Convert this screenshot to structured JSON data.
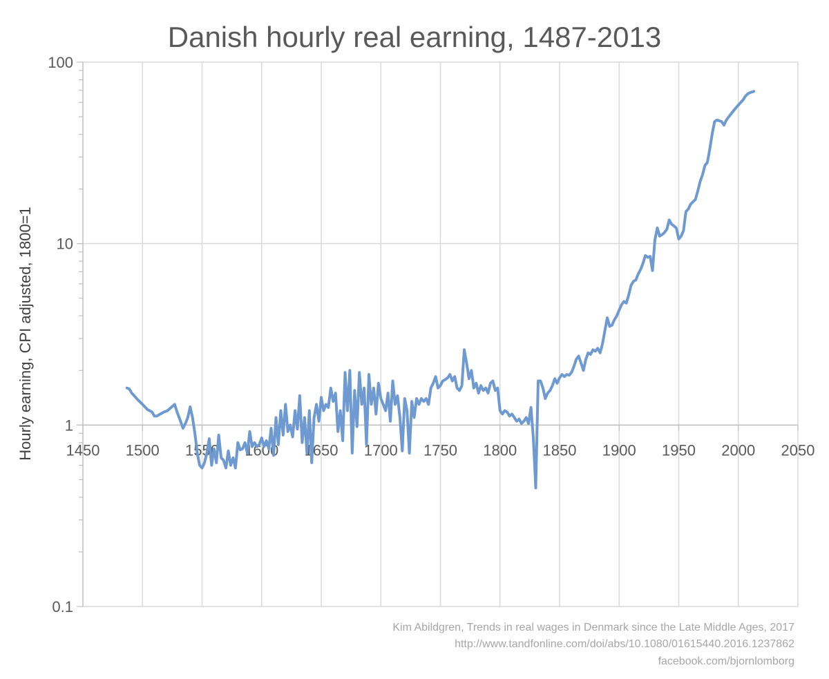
{
  "chart_data": {
    "type": "line",
    "title": "Danish hourly real earning, 1487-2013",
    "xlabel": "",
    "ylabel": "Hourly earning, CPI adjusted, 1800=1",
    "x_range": [
      1450,
      2050
    ],
    "x_ticks": [
      1450,
      1500,
      1550,
      1600,
      1650,
      1700,
      1750,
      1800,
      1850,
      1900,
      1950,
      2000,
      2050
    ],
    "y_scale": "log",
    "y_range": [
      0.1,
      100
    ],
    "y_ticks": [
      0.1,
      1,
      10,
      100
    ],
    "y_tick_labels": [
      "0.1",
      "1",
      "10",
      "100"
    ],
    "grid": {
      "x": true,
      "y": true
    },
    "color": "#6f99d1",
    "series": [
      {
        "x": [
          1487,
          1489,
          1491,
          1493,
          1496,
          1500,
          1504,
          1508,
          1510,
          1512,
          1515,
          1518,
          1521,
          1524,
          1527,
          1529,
          1532,
          1534,
          1536,
          1538,
          1540,
          1542,
          1544,
          1546,
          1548,
          1550,
          1552,
          1554,
          1556,
          1558,
          1560,
          1562,
          1564,
          1566,
          1568,
          1570,
          1572,
          1574,
          1576,
          1578,
          1580,
          1582,
          1584,
          1586,
          1588,
          1590,
          1592,
          1594,
          1596,
          1598,
          1600,
          1602,
          1604,
          1606,
          1608,
          1610,
          1612,
          1614,
          1616,
          1618,
          1620,
          1622,
          1624,
          1626,
          1628,
          1630,
          1632,
          1634,
          1636,
          1638,
          1640,
          1642,
          1644,
          1646,
          1648,
          1650,
          1652,
          1654,
          1656,
          1658,
          1660,
          1662,
          1664,
          1666,
          1668,
          1670,
          1672,
          1674,
          1676,
          1678,
          1680,
          1682,
          1684,
          1686,
          1688,
          1690,
          1692,
          1694,
          1696,
          1698,
          1700,
          1702,
          1704,
          1706,
          1708,
          1710,
          1712,
          1714,
          1716,
          1718,
          1720,
          1722,
          1724,
          1726,
          1728,
          1730,
          1732,
          1734,
          1736,
          1738,
          1740,
          1742,
          1744,
          1746,
          1748,
          1750,
          1752,
          1754,
          1756,
          1758,
          1760,
          1762,
          1764,
          1766,
          1768,
          1770,
          1772,
          1774,
          1776,
          1778,
          1780,
          1782,
          1784,
          1786,
          1788,
          1790,
          1792,
          1794,
          1796,
          1798,
          1800,
          1802,
          1804,
          1806,
          1808,
          1810,
          1812,
          1814,
          1816,
          1818,
          1820,
          1822,
          1824,
          1826,
          1828,
          1830,
          1832,
          1834,
          1836,
          1838,
          1840,
          1842,
          1844,
          1846,
          1848,
          1850,
          1852,
          1854,
          1856,
          1858,
          1860,
          1862,
          1864,
          1866,
          1868,
          1870,
          1872,
          1874,
          1876,
          1878,
          1880,
          1882,
          1884,
          1886,
          1888,
          1890,
          1892,
          1894,
          1896,
          1898,
          1900,
          1902,
          1904,
          1906,
          1908,
          1910,
          1912,
          1914,
          1916,
          1918,
          1920,
          1922,
          1924,
          1926,
          1928,
          1930,
          1932,
          1934,
          1936,
          1938,
          1940,
          1942,
          1944,
          1946,
          1948,
          1950,
          1952,
          1954,
          1956,
          1958,
          1960,
          1962,
          1964,
          1966,
          1968,
          1970,
          1972,
          1974,
          1976,
          1978,
          1980,
          1982,
          1984,
          1986,
          1988,
          1990,
          1992,
          1994,
          1996,
          1998,
          2000,
          2002,
          2004,
          2006,
          2008,
          2010,
          2013
        ],
        "y": [
          1.6,
          1.58,
          1.5,
          1.45,
          1.38,
          1.3,
          1.22,
          1.18,
          1.12,
          1.12,
          1.15,
          1.18,
          1.2,
          1.25,
          1.3,
          1.18,
          1.05,
          0.96,
          1.02,
          1.1,
          1.26,
          1.1,
          0.9,
          0.7,
          0.6,
          0.58,
          0.62,
          0.7,
          0.84,
          0.6,
          0.74,
          0.62,
          0.88,
          0.66,
          0.64,
          0.58,
          0.72,
          0.6,
          0.66,
          0.58,
          0.8,
          0.73,
          0.74,
          0.8,
          0.7,
          0.92,
          0.76,
          0.8,
          0.76,
          0.78,
          0.85,
          0.76,
          0.82,
          0.74,
          0.96,
          0.68,
          1.1,
          0.78,
          1.2,
          0.88,
          1.3,
          0.92,
          1.0,
          0.86,
          1.2,
          0.95,
          1.45,
          0.8,
          1.1,
          0.7,
          1.2,
          0.62,
          1.1,
          1.3,
          1.05,
          1.42,
          1.2,
          1.3,
          1.25,
          1.6,
          1.35,
          1.5,
          0.92,
          1.2,
          0.82,
          1.95,
          1.2,
          2.0,
          0.7,
          1.55,
          0.98,
          1.95,
          1.3,
          1.6,
          0.78,
          1.9,
          1.3,
          1.6,
          1.15,
          1.7,
          1.4,
          1.3,
          1.2,
          1.5,
          1.05,
          1.75,
          1.3,
          1.45,
          1.1,
          0.72,
          1.4,
          1.2,
          0.7,
          1.35,
          1.1,
          1.4,
          1.3,
          1.4,
          1.35,
          1.4,
          1.3,
          1.6,
          1.7,
          1.85,
          1.6,
          1.65,
          1.75,
          1.78,
          1.82,
          1.9,
          1.75,
          1.85,
          1.6,
          1.55,
          1.65,
          2.6,
          2.2,
          1.8,
          2.0,
          1.6,
          1.7,
          1.5,
          1.65,
          1.55,
          1.6,
          1.5,
          1.7,
          1.75,
          1.55,
          1.6,
          1.2,
          1.15,
          1.2,
          1.18,
          1.12,
          1.15,
          1.1,
          1.05,
          1.08,
          1.02,
          1.05,
          1.1,
          1.02,
          1.25,
          0.85,
          0.45,
          1.75,
          1.75,
          1.6,
          1.4,
          1.5,
          1.55,
          1.65,
          1.8,
          1.7,
          1.82,
          1.9,
          1.85,
          1.9,
          1.88,
          1.95,
          2.1,
          2.3,
          2.4,
          2.2,
          2.0,
          2.3,
          2.5,
          2.45,
          2.6,
          2.55,
          2.65,
          2.5,
          2.8,
          3.3,
          3.9,
          3.5,
          3.55,
          3.8,
          4.0,
          4.3,
          4.6,
          4.8,
          4.7,
          5.2,
          5.9,
          6.2,
          6.3,
          6.8,
          7.2,
          7.8,
          8.6,
          8.4,
          8.5,
          7.1,
          10.5,
          12.2,
          11.0,
          11.2,
          11.5,
          12.0,
          13.5,
          12.8,
          12.5,
          12.2,
          10.6,
          11.0,
          11.8,
          15.0,
          15.5,
          16.5,
          17.0,
          17.5,
          19.5,
          22.0,
          24.0,
          27.0,
          28.0,
          33.0,
          40.0,
          47.0,
          48.0,
          47.5,
          47.0,
          45.0,
          48.0,
          50.0,
          52.0,
          54.0,
          56.0,
          58.0,
          60.0,
          62.0,
          65.0,
          67.0,
          68.0,
          69.0
        ]
      }
    ]
  },
  "source": {
    "line1": "Kim Abildgren, Trends in real wages in Denmark since the Late Middle Ages, 2017",
    "line2": "http://www.tandfonline.com/doi/abs/10.1080/01615440.2016.1237862",
    "line3": "facebook.com/bjornlomborg"
  }
}
